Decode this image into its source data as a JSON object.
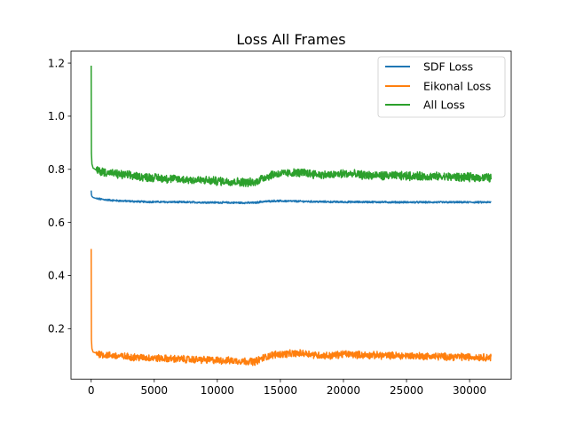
{
  "chart_data": {
    "type": "line",
    "title": "Loss All Frames",
    "xlabel": "",
    "ylabel": "",
    "xlim": [
      -1600,
      33300
    ],
    "ylim": [
      0.01,
      1.245
    ],
    "xticks": [
      0,
      5000,
      10000,
      15000,
      20000,
      25000,
      30000
    ],
    "yticks": [
      0.2,
      0.4,
      0.6,
      0.8,
      1.0,
      1.2
    ],
    "xtick_labels": [
      "0",
      "5000",
      "10000",
      "15000",
      "20000",
      "25000",
      "30000"
    ],
    "ytick_labels": [
      "0.2",
      "0.4",
      "0.6",
      "0.8",
      "1.0",
      "1.2"
    ],
    "grid": false,
    "legend_position": "top-right",
    "series": [
      {
        "name": "SDF Loss",
        "color": "#1f77b4",
        "noise": 0.003,
        "x": [
          0,
          20,
          60,
          150,
          400,
          1000,
          2000,
          4000,
          6000,
          8000,
          10000,
          12000,
          13000,
          13500,
          14500,
          16000,
          18000,
          20000,
          22000,
          25000,
          28000,
          31700
        ],
        "y": [
          0.72,
          0.705,
          0.698,
          0.694,
          0.69,
          0.686,
          0.682,
          0.678,
          0.677,
          0.676,
          0.675,
          0.674,
          0.674,
          0.678,
          0.681,
          0.68,
          0.678,
          0.677,
          0.677,
          0.676,
          0.676,
          0.676
        ]
      },
      {
        "name": "Eikonal Loss",
        "color": "#ff7f0e",
        "noise": 0.012,
        "x": [
          0,
          20,
          60,
          150,
          400,
          1000,
          2000,
          4000,
          6000,
          8000,
          10000,
          12000,
          13000,
          13500,
          14500,
          16000,
          17000,
          18000,
          19000,
          20000,
          22000,
          25000,
          28000,
          31700
        ],
        "y": [
          0.5,
          0.16,
          0.125,
          0.112,
          0.108,
          0.102,
          0.097,
          0.091,
          0.087,
          0.084,
          0.081,
          0.078,
          0.076,
          0.088,
          0.103,
          0.106,
          0.107,
          0.1,
          0.098,
          0.105,
          0.1,
          0.098,
          0.095,
          0.092
        ]
      },
      {
        "name": "All Loss",
        "color": "#2ca02c",
        "noise": 0.014,
        "x": [
          0,
          20,
          60,
          150,
          400,
          1000,
          2000,
          4000,
          6000,
          8000,
          10000,
          12000,
          13000,
          13500,
          14500,
          16000,
          17000,
          18000,
          19000,
          20000,
          22000,
          25000,
          28000,
          31700
        ],
        "y": [
          1.19,
          0.86,
          0.82,
          0.805,
          0.797,
          0.79,
          0.782,
          0.772,
          0.765,
          0.76,
          0.756,
          0.752,
          0.75,
          0.766,
          0.782,
          0.786,
          0.787,
          0.78,
          0.778,
          0.784,
          0.777,
          0.775,
          0.772,
          0.768
        ]
      }
    ]
  }
}
